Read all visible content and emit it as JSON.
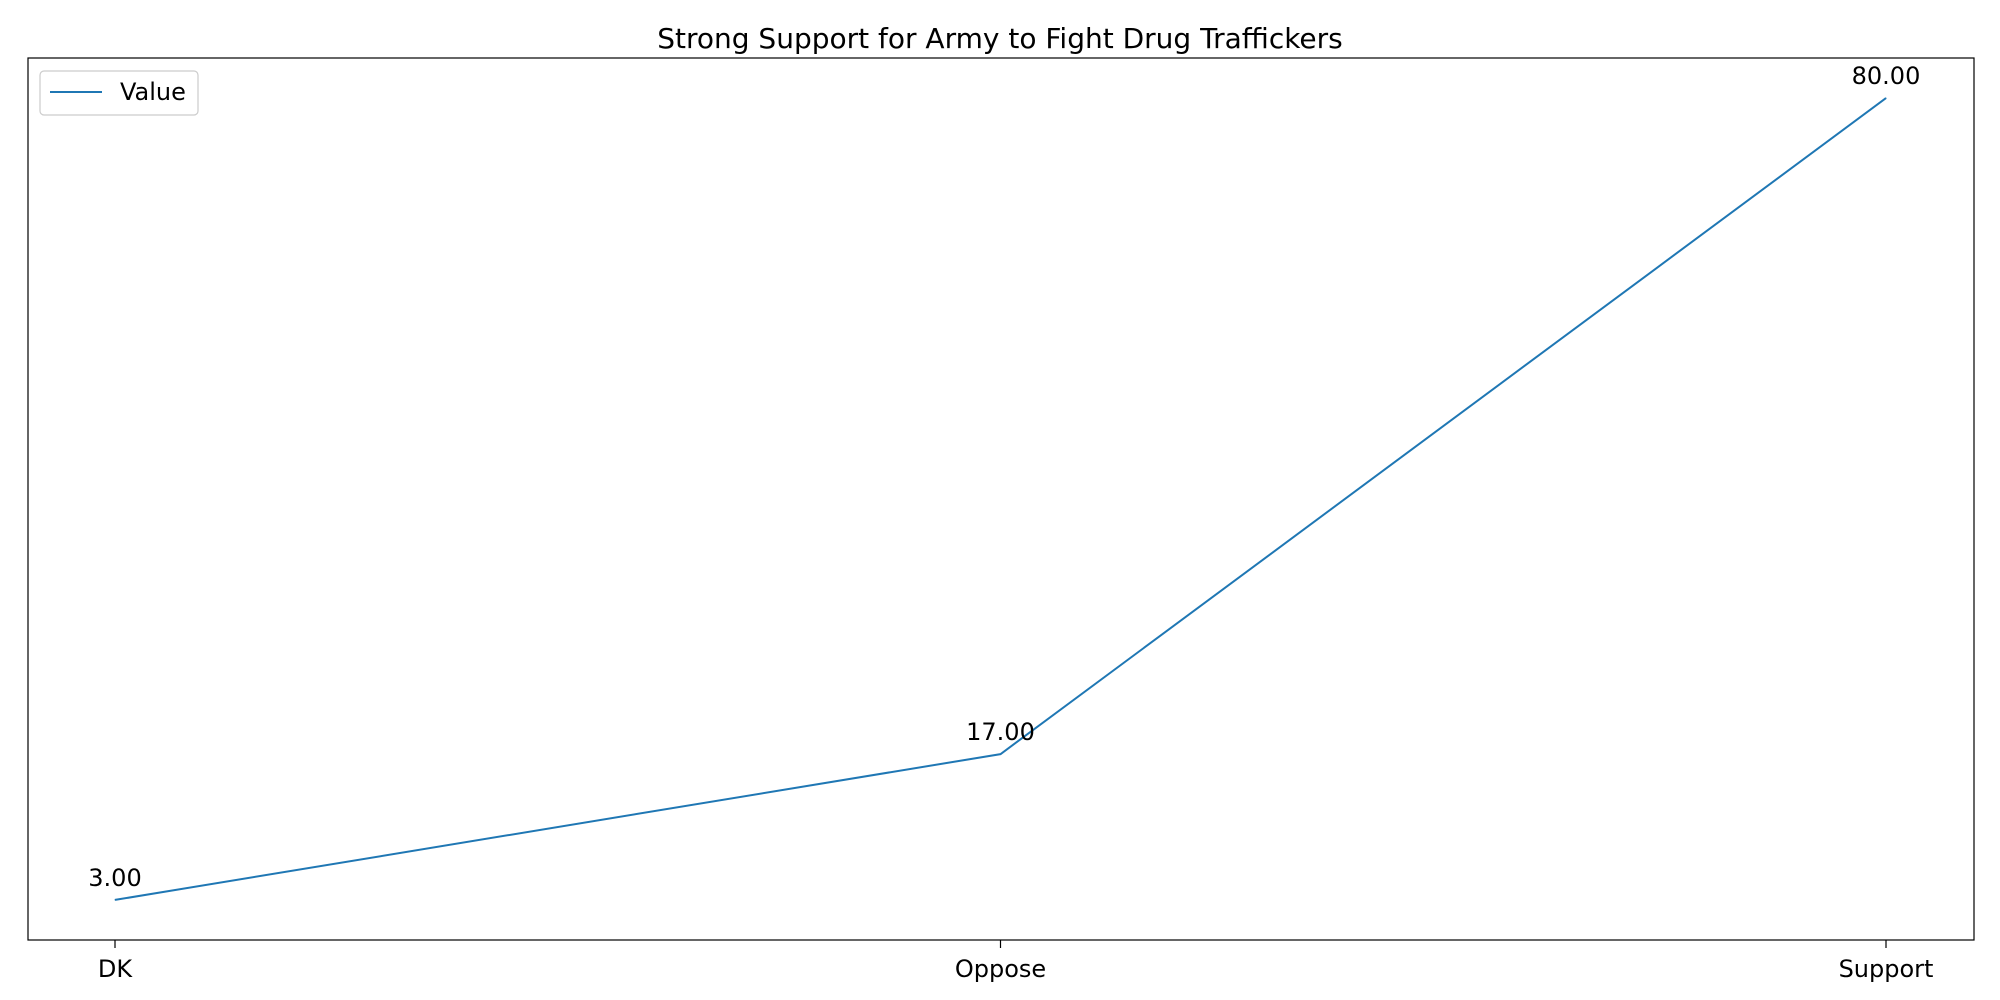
{
  "chart_data": {
    "type": "line",
    "title": "Strong Support for Army to Fight Drug Traffickers",
    "xlabel": "",
    "ylabel": "",
    "categories": [
      "DK",
      "Oppose",
      "Support"
    ],
    "series": [
      {
        "name": "Value",
        "values": [
          3,
          17,
          80
        ],
        "labels": [
          "3.00",
          "17.00",
          "80.00"
        ],
        "color": "#1f77b4"
      }
    ],
    "ylim": [
      -0.85,
      83.85
    ],
    "grid": false,
    "legend": "top-left"
  }
}
